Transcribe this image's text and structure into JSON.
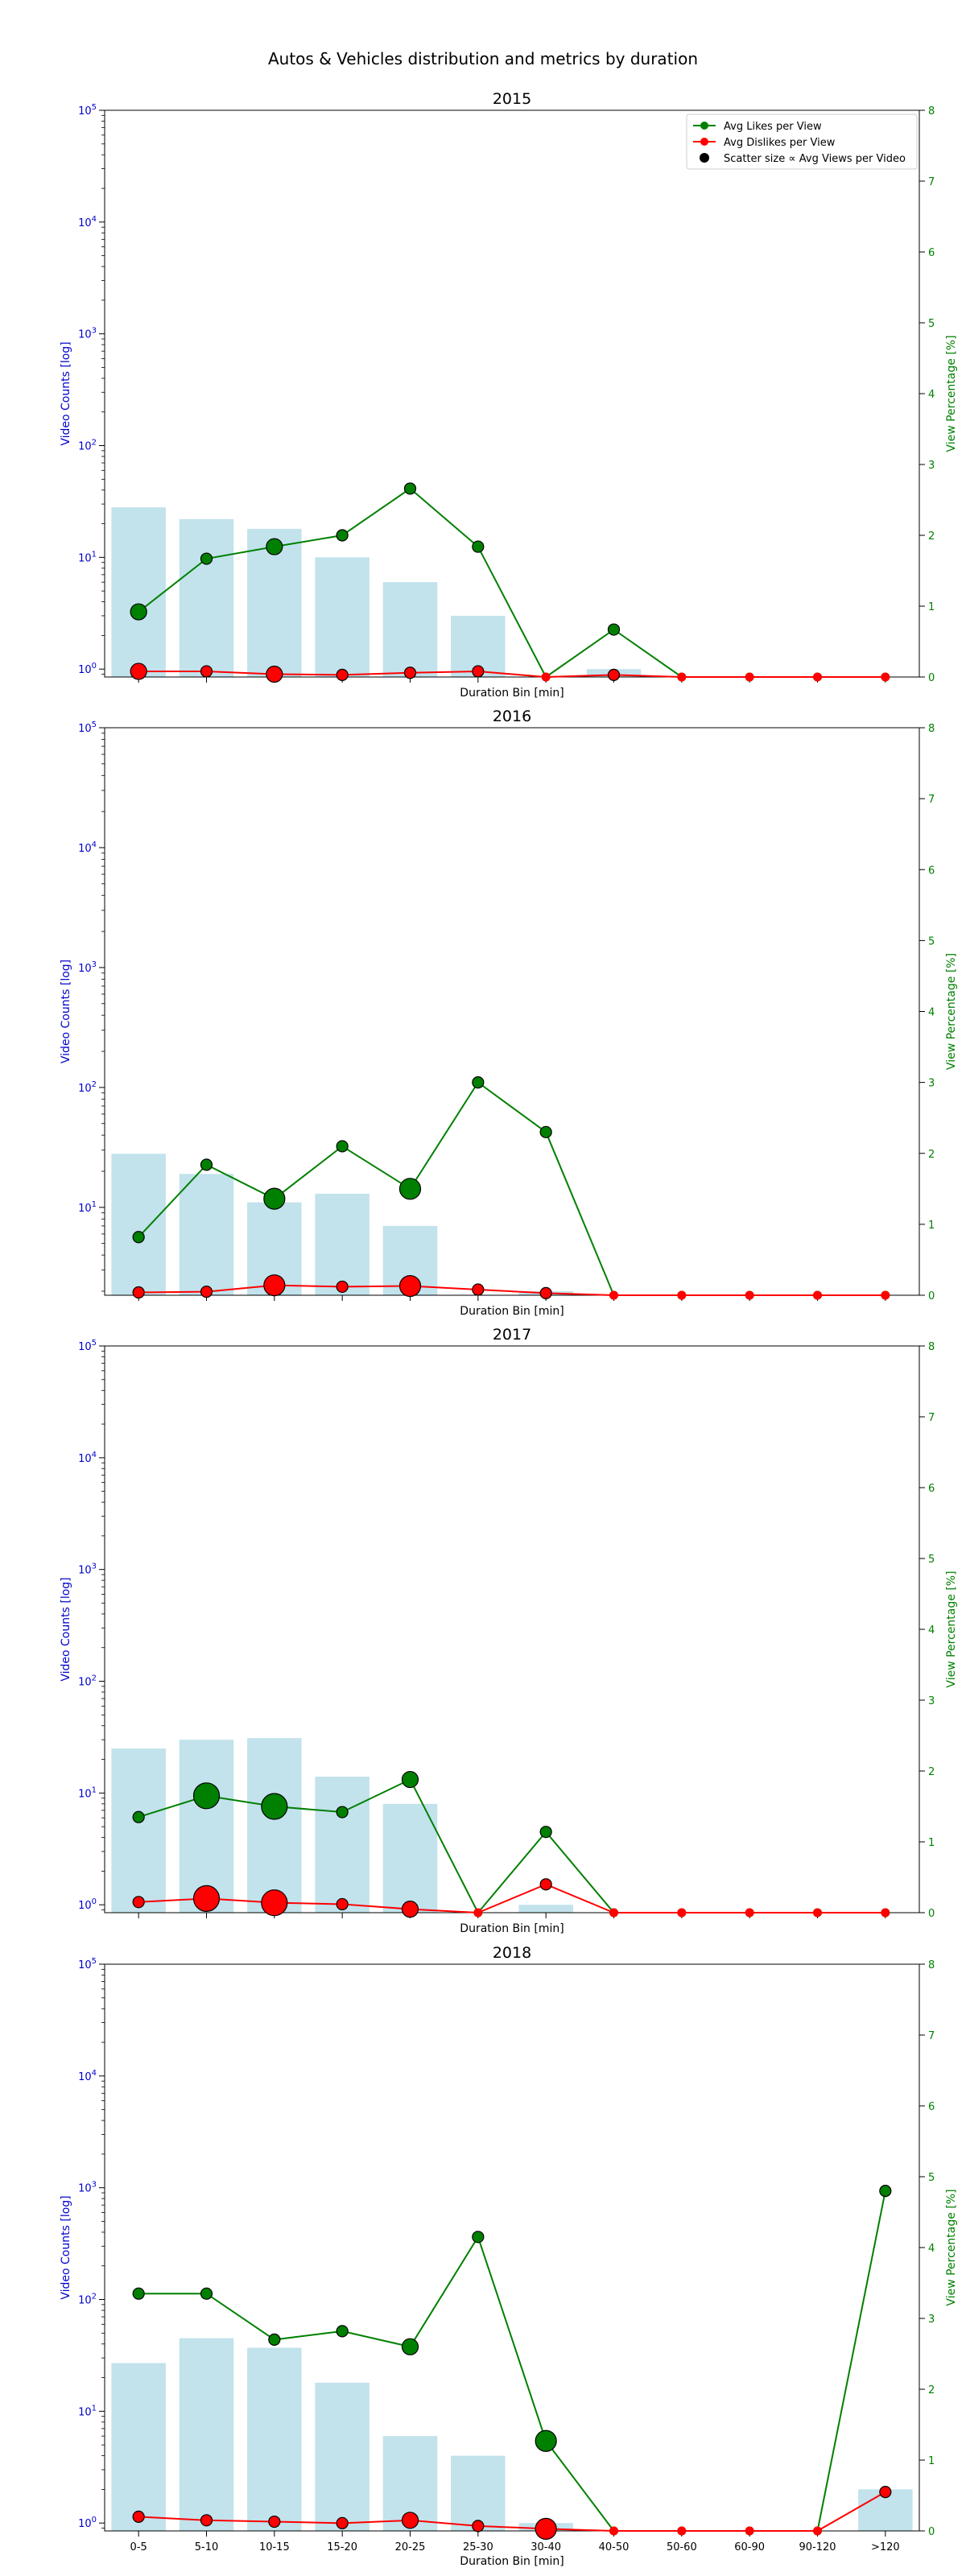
{
  "figure": {
    "title": "Autos & Vehicles distribution and metrics by duration"
  },
  "colors": {
    "bars": "#add8e6",
    "likes": "#008000",
    "dislikes": "#ff0000",
    "left_axis": "#0000cd",
    "right_axis": "#008000"
  },
  "chart_data": [
    {
      "type": "bar",
      "title": "2015",
      "categories": [
        "0-5",
        "5-10",
        "10-15",
        "15-20",
        "20-25",
        "25-30",
        "30-40",
        "40-50",
        "50-60",
        "60-90",
        "90-120",
        ">120"
      ],
      "xlabel": "Duration Bin [min]",
      "ylabel": "Video Counts [log]",
      "y_scale": "log",
      "ylim": [
        0.85,
        100000
      ],
      "y2label": "View Percentage [%]",
      "y2lim": [
        0,
        8
      ],
      "y_ticks": [
        "10^0",
        "10^1",
        "10^2",
        "10^3",
        "10^4",
        "10^5"
      ],
      "y2_ticks": [
        "0",
        "1",
        "2",
        "3",
        "4",
        "5",
        "6",
        "7",
        "8"
      ],
      "legend_position": "top-right",
      "legend": [
        "Avg Likes per View",
        "Avg Dislikes per View",
        "Scatter size ∝ Avg Views per Video"
      ],
      "bars": [
        28,
        22,
        18,
        10,
        6,
        3,
        0,
        1,
        0,
        0,
        0,
        0
      ],
      "likes": [
        0.92,
        1.67,
        1.84,
        2.0,
        2.66,
        1.84,
        0,
        0.67,
        0,
        0,
        0,
        0
      ],
      "dislikes": [
        0.08,
        0.08,
        0.04,
        0.03,
        0.06,
        0.08,
        0,
        0.03,
        0,
        0,
        0,
        0
      ],
      "marker_size": [
        2,
        1,
        2,
        1,
        1,
        1,
        0,
        1,
        0,
        0,
        0,
        0
      ]
    },
    {
      "type": "bar",
      "title": "2016",
      "categories": [
        "0-5",
        "5-10",
        "10-15",
        "15-20",
        "20-25",
        "25-30",
        "30-40",
        "40-50",
        "50-60",
        "60-90",
        "90-120",
        ">120"
      ],
      "xlabel": "Duration Bin [min]",
      "ylabel": "Video Counts [log]",
      "y_scale": "log",
      "ylim": [
        1.85,
        100000
      ],
      "y2label": "View Percentage [%]",
      "y2lim": [
        0,
        8
      ],
      "y_ticks": [
        "10^1",
        "10^2",
        "10^3",
        "10^4",
        "10^5"
      ],
      "y2_ticks": [
        "0",
        "1",
        "2",
        "3",
        "4",
        "5",
        "6",
        "7",
        "8"
      ],
      "bars": [
        28,
        19,
        11,
        13,
        7,
        0,
        2,
        0,
        0,
        0,
        0,
        0
      ],
      "likes": [
        0.82,
        1.84,
        1.36,
        2.1,
        1.5,
        3.0,
        2.3,
        0,
        0,
        0,
        0,
        0
      ],
      "dislikes": [
        0.04,
        0.05,
        0.14,
        0.12,
        0.13,
        0.08,
        0.03,
        0,
        0,
        0,
        0,
        0
      ],
      "marker_size": [
        1,
        1,
        3,
        1,
        3,
        1,
        1,
        0,
        0,
        0,
        0,
        0
      ]
    },
    {
      "type": "bar",
      "title": "2017",
      "categories": [
        "0-5",
        "5-10",
        "10-15",
        "15-20",
        "20-25",
        "25-30",
        "30-40",
        "40-50",
        "50-60",
        "60-90",
        "90-120",
        ">120"
      ],
      "xlabel": "Duration Bin [min]",
      "ylabel": "Video Counts [log]",
      "y_scale": "log",
      "ylim": [
        0.85,
        100000
      ],
      "y2label": "View Percentage [%]",
      "y2lim": [
        0,
        8
      ],
      "y_ticks": [
        "10^0",
        "10^1",
        "10^2",
        "10^3",
        "10^4",
        "10^5"
      ],
      "y2_ticks": [
        "0",
        "1",
        "2",
        "3",
        "4",
        "5",
        "6",
        "7",
        "8"
      ],
      "bars": [
        25,
        30,
        31,
        14,
        8,
        0,
        1,
        0,
        0,
        0,
        0,
        0
      ],
      "likes": [
        1.35,
        1.65,
        1.5,
        1.42,
        1.88,
        0,
        1.14,
        0,
        0,
        0,
        0,
        0
      ],
      "dislikes": [
        0.15,
        0.2,
        0.14,
        0.12,
        0.05,
        0,
        0.4,
        0,
        0,
        0,
        0,
        0
      ],
      "marker_size": [
        1,
        4,
        4,
        1,
        2,
        0,
        1,
        0,
        0,
        0,
        0,
        0
      ]
    },
    {
      "type": "bar",
      "title": "2018",
      "categories": [
        "0-5",
        "5-10",
        "10-15",
        "15-20",
        "20-25",
        "25-30",
        "30-40",
        "40-50",
        "50-60",
        "60-90",
        "90-120",
        ">120"
      ],
      "xlabel": "Duration Bin [min]",
      "ylabel": "Video Counts [log]",
      "y_scale": "log",
      "ylim": [
        0.85,
        100000
      ],
      "y2label": "View Percentage [%]",
      "y2lim": [
        0,
        8
      ],
      "y_ticks": [
        "10^0",
        "10^1",
        "10^2",
        "10^3",
        "10^4",
        "10^5"
      ],
      "y2_ticks": [
        "0",
        "1",
        "2",
        "3",
        "4",
        "5",
        "6",
        "7",
        "8"
      ],
      "bars": [
        27,
        45,
        37,
        18,
        6,
        4,
        1,
        0,
        0,
        0,
        0,
        2
      ],
      "likes": [
        3.35,
        3.35,
        2.7,
        2.82,
        2.6,
        4.15,
        1.27,
        0,
        0,
        0,
        0,
        4.8
      ],
      "dislikes": [
        0.2,
        0.15,
        0.13,
        0.11,
        0.15,
        0.07,
        0.03,
        0,
        0,
        0,
        0,
        0.55
      ],
      "marker_size": [
        1,
        1,
        1,
        1,
        2,
        1,
        3,
        0,
        0,
        0,
        0,
        1
      ]
    }
  ]
}
